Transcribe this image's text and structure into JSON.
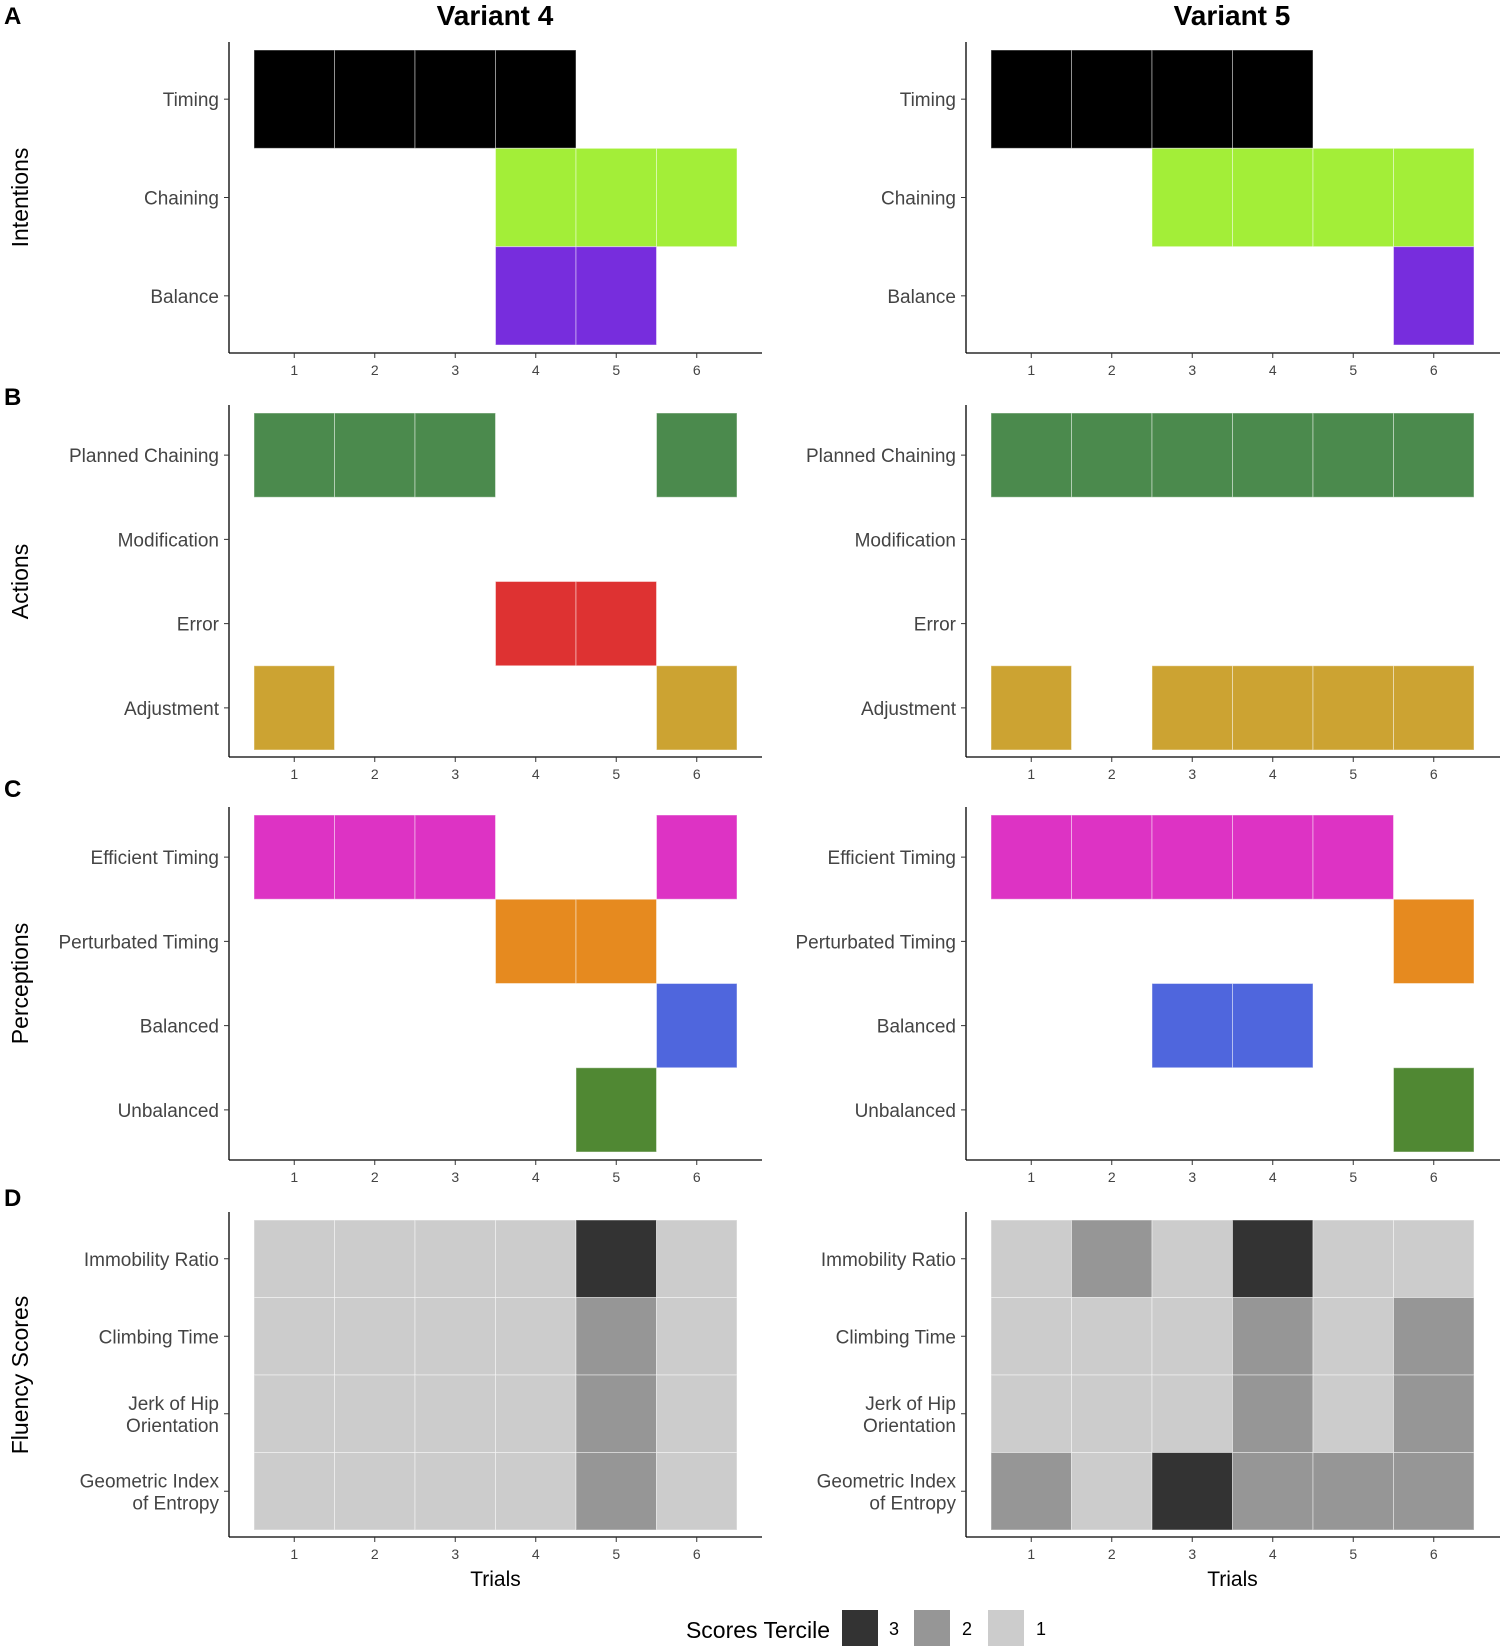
{
  "variant_titles": [
    "Variant 4",
    "Variant 5"
  ],
  "x_axis_title": "Trials",
  "legend": {
    "title": "Scores Tercile",
    "entries": [
      {
        "label": "3",
        "color": "#333333"
      },
      {
        "label": "2",
        "color": "#969696"
      },
      {
        "label": "1",
        "color": "#cccccc"
      }
    ]
  },
  "chart_data": [
    {
      "type": "heatmap",
      "panel": "A",
      "ylabel": "Intentions",
      "xlabel": "",
      "x": [
        1,
        2,
        3,
        4,
        5,
        6
      ],
      "rows": [
        {
          "label": [
            "Timing"
          ],
          "color": "#000000"
        },
        {
          "label": [
            "Chaining"
          ],
          "color": "#a3ee38"
        },
        {
          "label": [
            "Balance"
          ],
          "color": "#772ddd"
        }
      ],
      "variants": [
        {
          "title": "Variant 4",
          "cells": [
            [
              1,
              1,
              1,
              1,
              0,
              0
            ],
            [
              0,
              0,
              0,
              1,
              1,
              1
            ],
            [
              0,
              0,
              0,
              1,
              1,
              0
            ]
          ]
        },
        {
          "title": "Variant 5",
          "cells": [
            [
              1,
              1,
              1,
              1,
              0,
              0
            ],
            [
              0,
              0,
              1,
              1,
              1,
              1
            ],
            [
              0,
              0,
              0,
              0,
              0,
              1
            ]
          ]
        }
      ]
    },
    {
      "type": "heatmap",
      "panel": "B",
      "ylabel": "Actions",
      "xlabel": "",
      "x": [
        1,
        2,
        3,
        4,
        5,
        6
      ],
      "rows": [
        {
          "label": [
            "Planned Chaining"
          ],
          "color": "#4b8a4d"
        },
        {
          "label": [
            "Modification"
          ],
          "color": "#7a7a7a"
        },
        {
          "label": [
            "Error"
          ],
          "color": "#de3232"
        },
        {
          "label": [
            "Adjustment"
          ],
          "color": "#cca332"
        }
      ],
      "variants": [
        {
          "title": "Variant 4",
          "cells": [
            [
              1,
              1,
              1,
              0,
              0,
              1
            ],
            [
              0,
              0,
              0,
              0,
              0,
              0
            ],
            [
              0,
              0,
              0,
              1,
              1,
              0
            ],
            [
              1,
              0,
              0,
              0,
              0,
              1
            ]
          ]
        },
        {
          "title": "Variant 5",
          "cells": [
            [
              1,
              1,
              1,
              1,
              1,
              1
            ],
            [
              0,
              0,
              0,
              0,
              0,
              0
            ],
            [
              0,
              0,
              0,
              0,
              0,
              0
            ],
            [
              1,
              0,
              1,
              1,
              1,
              1
            ]
          ]
        }
      ]
    },
    {
      "type": "heatmap",
      "panel": "C",
      "ylabel": "Perceptions",
      "xlabel": "",
      "x": [
        1,
        2,
        3,
        4,
        5,
        6
      ],
      "rows": [
        {
          "label": [
            "Efficient Timing"
          ],
          "color": "#dd33c4"
        },
        {
          "label": [
            "Perturbated Timing"
          ],
          "color": "#e68a1f"
        },
        {
          "label": [
            "Balanced"
          ],
          "color": "#4f66dd"
        },
        {
          "label": [
            "Unbalanced"
          ],
          "color": "#508833"
        }
      ],
      "variants": [
        {
          "title": "Variant 4",
          "cells": [
            [
              1,
              1,
              1,
              0,
              0,
              1
            ],
            [
              0,
              0,
              0,
              1,
              1,
              0
            ],
            [
              0,
              0,
              0,
              0,
              0,
              1
            ],
            [
              0,
              0,
              0,
              0,
              1,
              0
            ]
          ]
        },
        {
          "title": "Variant 5",
          "cells": [
            [
              1,
              1,
              1,
              1,
              1,
              0
            ],
            [
              0,
              0,
              0,
              0,
              0,
              1
            ],
            [
              0,
              0,
              1,
              1,
              0,
              0
            ],
            [
              0,
              0,
              0,
              0,
              0,
              1
            ]
          ]
        }
      ]
    },
    {
      "type": "heatmap",
      "panel": "D",
      "ylabel": "Fluency Scores",
      "xlabel": "Trials",
      "x": [
        1,
        2,
        3,
        4,
        5,
        6
      ],
      "value_legend": "Scores Tercile",
      "rows": [
        {
          "label": [
            "Immobility Ratio"
          ]
        },
        {
          "label": [
            "Climbing Time"
          ]
        },
        {
          "label": [
            "Jerk of Hip",
            "Orientation"
          ]
        },
        {
          "label": [
            "Geometric Index",
            "of Entropy"
          ]
        }
      ],
      "variants": [
        {
          "title": "Variant 4",
          "cells": [
            [
              1,
              1,
              1,
              1,
              3,
              1
            ],
            [
              1,
              1,
              1,
              1,
              2,
              1
            ],
            [
              1,
              1,
              1,
              1,
              2,
              1
            ],
            [
              1,
              1,
              1,
              1,
              2,
              1
            ]
          ]
        },
        {
          "title": "Variant 5",
          "cells": [
            [
              1,
              2,
              1,
              3,
              1,
              1
            ],
            [
              1,
              1,
              1,
              2,
              1,
              2
            ],
            [
              1,
              1,
              1,
              2,
              1,
              2
            ],
            [
              2,
              1,
              3,
              2,
              2,
              2
            ]
          ]
        }
      ]
    }
  ]
}
